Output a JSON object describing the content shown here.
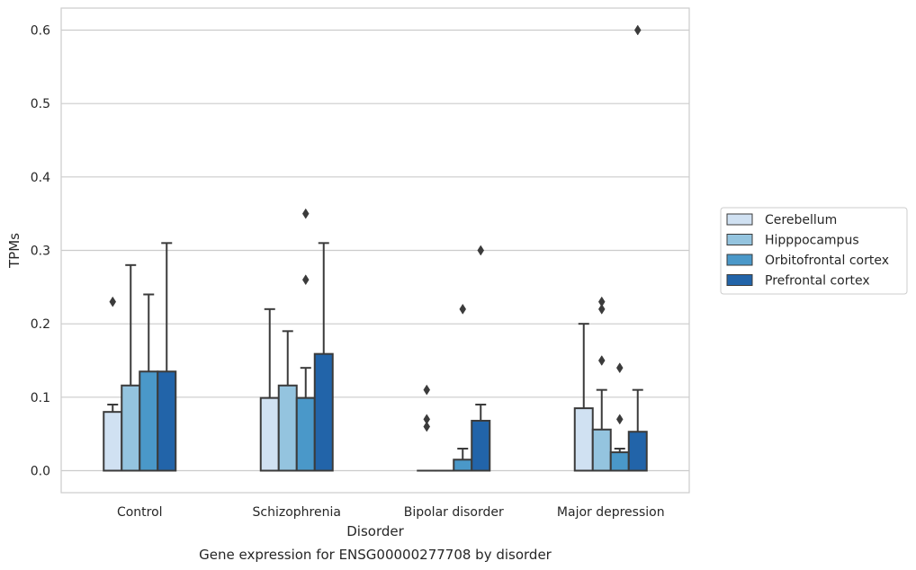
{
  "chart_data": {
    "type": "bar",
    "title": "",
    "caption": "Gene expression for ENSG00000277708 by disorder",
    "xlabel": "Disorder",
    "ylabel": "TPMs",
    "ylim": [
      -0.03,
      0.63
    ],
    "yticks": [
      "0.0",
      "0.1",
      "0.2",
      "0.3",
      "0.4",
      "0.5",
      "0.6"
    ],
    "grid": "horizontal",
    "legend_position": "right",
    "categories": [
      "Control",
      "Schizophrenia",
      "Bipolar disorder",
      "Major depression"
    ],
    "series": [
      {
        "name": "Cerebellum",
        "color": "#d0e1f2",
        "values": [
          0.08,
          0.099,
          0.0,
          0.085
        ],
        "err_low": [
          0.08,
          0.099,
          0.0,
          0.085
        ],
        "err_high": [
          0.09,
          0.22,
          0.0,
          0.2
        ],
        "outliers": [
          [
            0.23
          ],
          [],
          [
            0.11,
            0.07,
            0.06
          ],
          []
        ]
      },
      {
        "name": "Hipppocampus",
        "color": "#94c4df",
        "values": [
          0.116,
          0.116,
          0.0,
          0.056
        ],
        "err_low": [
          0.116,
          0.116,
          0.0,
          0.056
        ],
        "err_high": [
          0.28,
          0.19,
          0.0,
          0.11
        ],
        "outliers": [
          [],
          [],
          [],
          [
            0.23,
            0.22,
            0.15
          ]
        ]
      },
      {
        "name": "Orbitofrontal cortex",
        "color": "#4a98c9",
        "values": [
          0.135,
          0.099,
          0.015,
          0.025
        ],
        "err_low": [
          0.135,
          0.099,
          0.015,
          0.025
        ],
        "err_high": [
          0.24,
          0.14,
          0.03,
          0.03
        ],
        "outliers": [
          [],
          [
            0.35,
            0.26
          ],
          [
            0.22
          ],
          [
            0.14,
            0.07
          ]
        ]
      },
      {
        "name": "Prefrontal cortex",
        "color": "#2264a9",
        "values": [
          0.135,
          0.159,
          0.068,
          0.053
        ],
        "err_low": [
          0.135,
          0.159,
          0.068,
          0.053
        ],
        "err_high": [
          0.31,
          0.31,
          0.09,
          0.11
        ],
        "outliers": [
          [],
          [],
          [
            0.3
          ],
          [
            0.6
          ]
        ]
      }
    ]
  }
}
